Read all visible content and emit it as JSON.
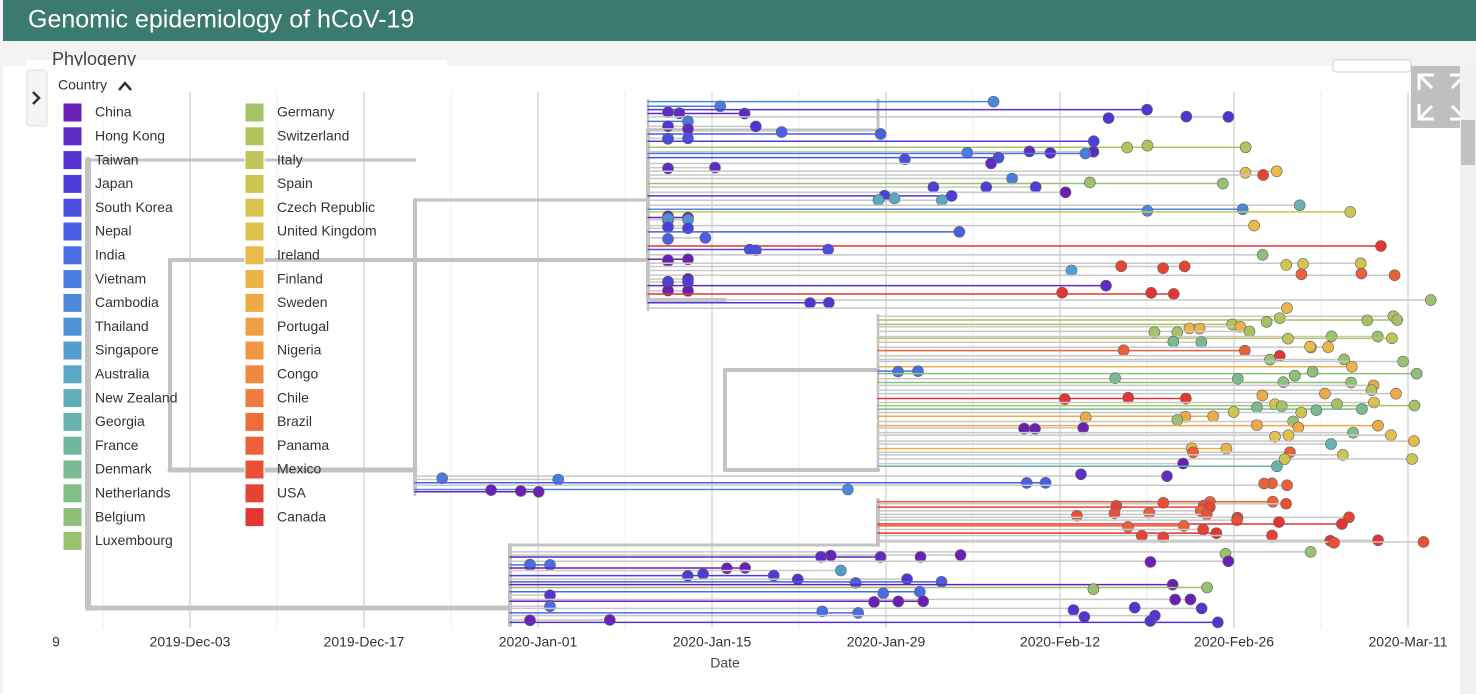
{
  "header": {
    "title": "Genomic epidemiology of hCoV-19"
  },
  "panel": {
    "title": "Phylogeny"
  },
  "legend": {
    "title": "Country",
    "items": [
      {
        "name": "China",
        "color": "#6a1fb5"
      },
      {
        "name": "Hong Kong",
        "color": "#5e2cc4"
      },
      {
        "name": "Taiwan",
        "color": "#5533d0"
      },
      {
        "name": "Japan",
        "color": "#4c3fd9"
      },
      {
        "name": "South Korea",
        "color": "#4a4fe0"
      },
      {
        "name": "Nepal",
        "color": "#4a5fe3"
      },
      {
        "name": "India",
        "color": "#4a6de3"
      },
      {
        "name": "Vietnam",
        "color": "#4a7ce0"
      },
      {
        "name": "Cambodia",
        "color": "#4c88dc"
      },
      {
        "name": "Thailand",
        "color": "#4f93d6"
      },
      {
        "name": "Singapore",
        "color": "#549ecf"
      },
      {
        "name": "Australia",
        "color": "#5aa7c6"
      },
      {
        "name": "New Zealand",
        "color": "#61aebb"
      },
      {
        "name": "Georgia",
        "color": "#68b3ae"
      },
      {
        "name": "France",
        "color": "#70b7a0"
      },
      {
        "name": "Denmark",
        "color": "#79ba93"
      },
      {
        "name": "Netherlands",
        "color": "#83bd87"
      },
      {
        "name": "Belgium",
        "color": "#8ebf7b"
      },
      {
        "name": "Luxembourg",
        "color": "#9ac16f"
      },
      {
        "name": "Germany",
        "color": "#a6c266"
      },
      {
        "name": "Switzerland",
        "color": "#b2c45e"
      },
      {
        "name": "Italy",
        "color": "#bfc557"
      },
      {
        "name": "Spain",
        "color": "#cbc552"
      },
      {
        "name": "Czech Republic",
        "color": "#d6c44e"
      },
      {
        "name": "United Kingdom",
        "color": "#e0c14c"
      },
      {
        "name": "Ireland",
        "color": "#e7bb4a"
      },
      {
        "name": "Finland",
        "color": "#ebb348"
      },
      {
        "name": "Sweden",
        "color": "#eeaa46"
      },
      {
        "name": "Portugal",
        "color": "#efa044"
      },
      {
        "name": "Nigeria",
        "color": "#f09542"
      },
      {
        "name": "Congo",
        "color": "#f08940"
      },
      {
        "name": "Chile",
        "color": "#ef7c3e"
      },
      {
        "name": "Brazil",
        "color": "#ed6e3b"
      },
      {
        "name": "Panama",
        "color": "#eb6039"
      },
      {
        "name": "Mexico",
        "color": "#e85137"
      },
      {
        "name": "USA",
        "color": "#e64335"
      },
      {
        "name": "Canada",
        "color": "#e33533"
      }
    ]
  },
  "axis": {
    "title": "Date",
    "ticks": [
      "9",
      "2019-Dec-03",
      "2019-Dec-17",
      "2020-Jan-01",
      "2020-Jan-15",
      "2020-Jan-29",
      "2020-Feb-12",
      "2020-Feb-26",
      "2020-Mar-11"
    ]
  }
}
